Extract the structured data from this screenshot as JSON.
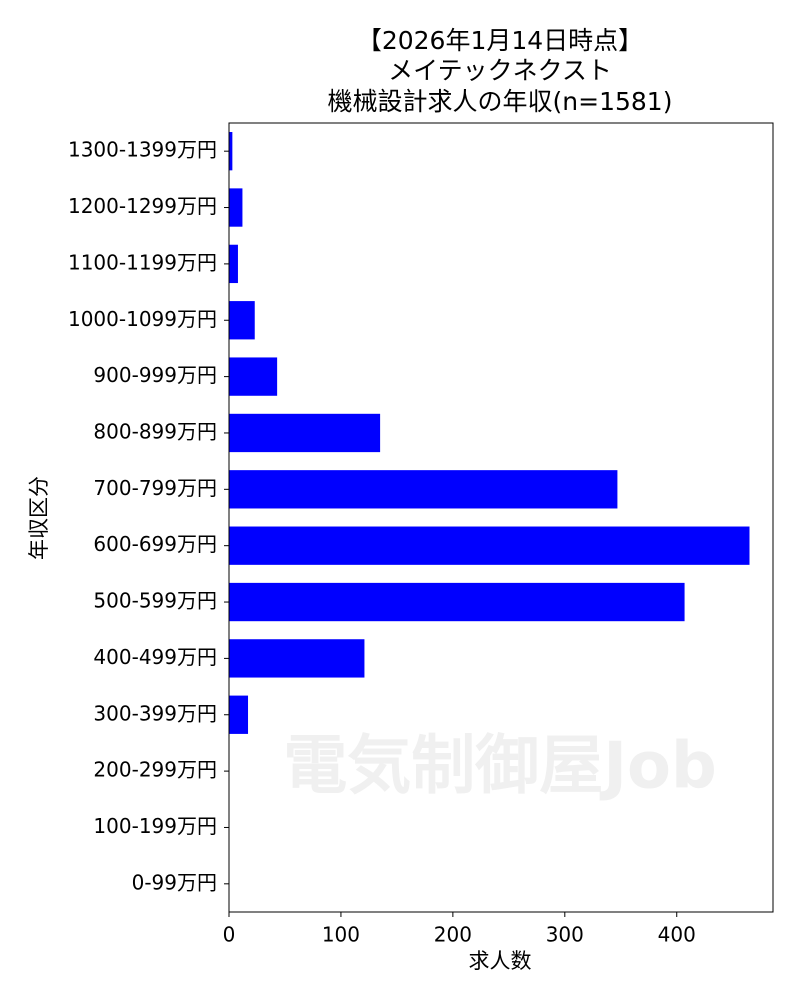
{
  "chart_data": {
    "type": "barh",
    "title": [
      "【2026年1月14日時点】",
      "メイテックネクスト",
      "機械設計求人の年収(n=1581)"
    ],
    "watermark": "電気制御屋Job",
    "xlabel": "求人数",
    "ylabel": "年収区分",
    "categories": [
      "0-99万円",
      "100-199万円",
      "200-299万円",
      "300-399万円",
      "400-499万円",
      "500-599万円",
      "600-699万円",
      "700-799万円",
      "800-899万円",
      "900-999万円",
      "1000-1099万円",
      "1100-1199万円",
      "1200-1299万円",
      "1300-1399万円"
    ],
    "values": [
      0,
      0,
      0,
      17,
      121,
      407,
      465,
      347,
      135,
      43,
      23,
      8,
      12,
      3
    ],
    "color": "#0000ff",
    "xlim": [
      0,
      486
    ],
    "xticks": [
      0,
      100,
      200,
      300,
      400
    ],
    "grid": false
  }
}
